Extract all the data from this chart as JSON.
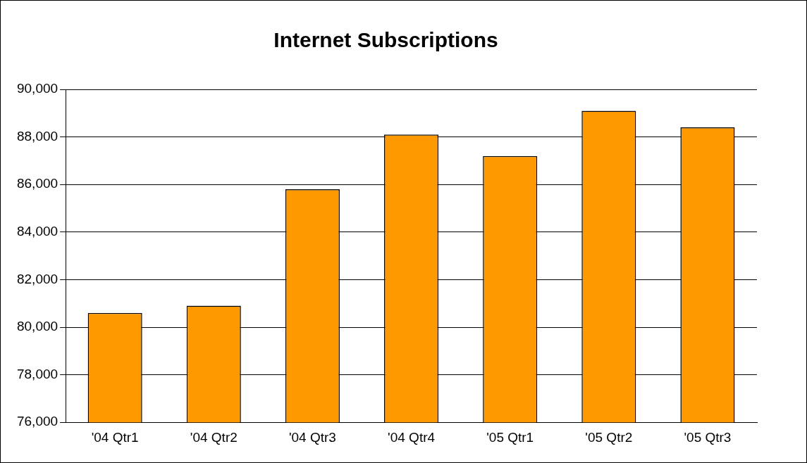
{
  "chart_data": {
    "type": "bar",
    "title": "Internet Subscriptions",
    "categories": [
      "'04 Qtr1",
      "'04 Qtr2",
      "'04 Qtr3",
      "'04 Qtr4",
      "'05 Qtr1",
      "'05 Qtr2",
      "'05 Qtr3"
    ],
    "values": [
      80600,
      80900,
      85800,
      88100,
      87200,
      89100,
      88400
    ],
    "color": "#ff9900",
    "ylim": [
      76000,
      90000
    ],
    "yticks": [
      {
        "value": 76000,
        "label": "76,000"
      },
      {
        "value": 78000,
        "label": "78,000"
      },
      {
        "value": 80000,
        "label": "80,000"
      },
      {
        "value": 82000,
        "label": "82,000"
      },
      {
        "value": 84000,
        "label": "84,000"
      },
      {
        "value": 86000,
        "label": "86,000"
      },
      {
        "value": 88000,
        "label": "88,000"
      },
      {
        "value": 90000,
        "label": "90,000"
      }
    ],
    "grid": "y",
    "legend": false
  }
}
